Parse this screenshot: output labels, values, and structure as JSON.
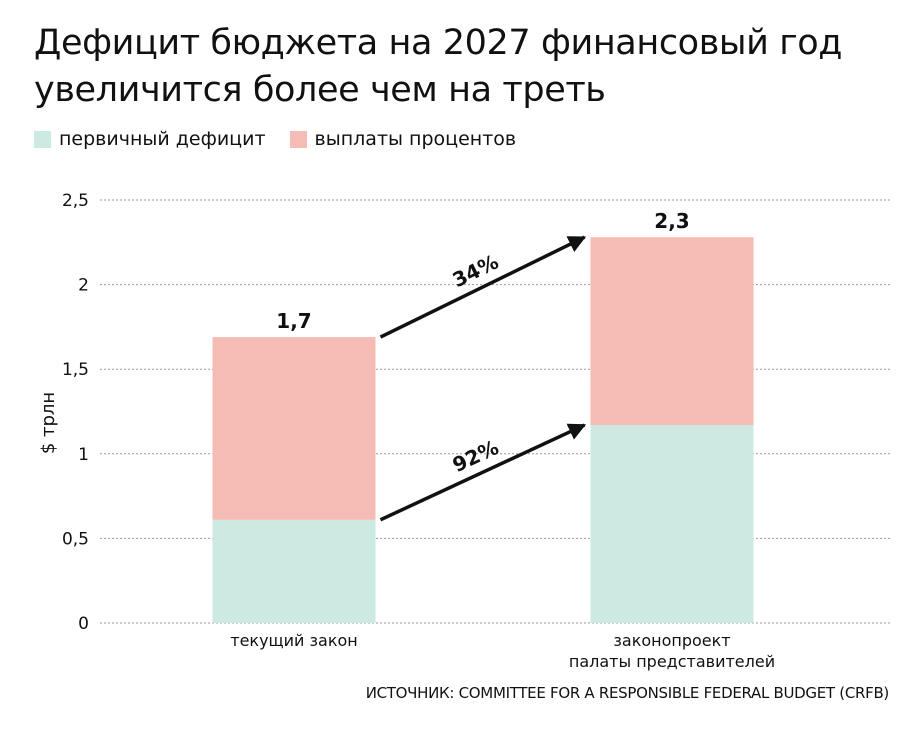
{
  "title": {
    "line1": "Дефицит бюджета на 2027 финансовый год",
    "line2": "увеличится более чем на треть"
  },
  "colors": {
    "primary_deficit": "#cce9e2",
    "interest_payments": "#f5bcb6",
    "grid": "#9a9a9a",
    "arrow": "#111111",
    "text": "#111111"
  },
  "legend": [
    {
      "label": "первичный дефицит",
      "color": "#cce9e2"
    },
    {
      "label": "выплаты процентов",
      "color": "#f5bcb6"
    }
  ],
  "source": "ИСТОЧНИК: COMMITTEE FOR A RESPONSIBLE FEDERAL BUDGET (CRFB)",
  "chart_data": {
    "type": "bar",
    "stacked": true,
    "title": "Дефицит бюджета на 2027 финансовый год увеличится более чем на треть",
    "ylabel": "$ трлн",
    "xlabel": "",
    "ylim": [
      0,
      2.5
    ],
    "yticks": [
      0,
      0.5,
      1,
      1.5,
      2,
      2.5
    ],
    "ytick_labels": [
      "0",
      "0,5",
      "1",
      "1,5",
      "2",
      "2,5"
    ],
    "grid": true,
    "legend_position": "top-left",
    "categories": [
      [
        "текущий закон"
      ],
      [
        "законопроект",
        "палаты представителей"
      ]
    ],
    "series": [
      {
        "name": "первичный дефицит",
        "values": [
          0.61,
          1.17
        ]
      },
      {
        "name": "выплаты процентов",
        "values": [
          1.08,
          1.11
        ]
      }
    ],
    "totals": [
      1.69,
      2.28
    ],
    "total_labels": [
      "1,7",
      "2,3"
    ],
    "annotations": [
      {
        "text": "34%",
        "from_category": 0,
        "to_category": 1,
        "series": "total"
      },
      {
        "text": "92%",
        "from_category": 0,
        "to_category": 1,
        "series": "первичный дефицит"
      }
    ]
  }
}
